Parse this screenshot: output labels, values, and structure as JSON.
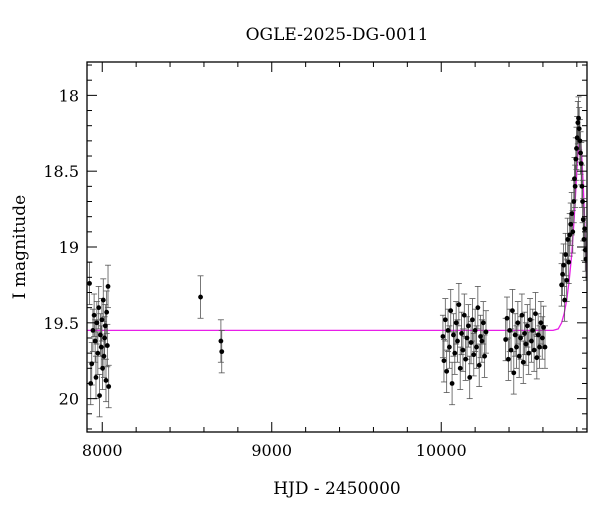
{
  "chart_data": {
    "type": "scatter",
    "title": "OGLE-2025-DG-0011",
    "xlabel": "HJD - 2450000",
    "ylabel": "I magnitude",
    "xlim": [
      7910,
      10860
    ],
    "ylim": [
      20.22,
      17.78
    ],
    "y_inverted": true,
    "x_ticks": [
      8000,
      9000,
      10000
    ],
    "y_ticks": [
      18,
      18.5,
      19,
      19.5,
      20
    ],
    "grid": false,
    "colors": {
      "points": "#000000",
      "model": "#e81ee8",
      "errorbars": "#555555"
    },
    "series": [
      {
        "kind": "points",
        "x": [
          7925,
          7932,
          7938,
          7945,
          7952,
          7958,
          7963,
          7968,
          7974,
          7979,
          7984,
          7989,
          7994,
          7998,
          8002,
          8006,
          8010,
          8014,
          8018,
          8022,
          8026,
          8030,
          8034,
          8038,
          8580,
          8700,
          8705,
          10010,
          10016,
          10024,
          10032,
          10040,
          10048,
          10056,
          10064,
          10072,
          10080,
          10088,
          10096,
          10104,
          10112,
          10120,
          10128,
          10136,
          10144,
          10152,
          10160,
          10168,
          10176,
          10184,
          10192,
          10200,
          10208,
          10216,
          10224,
          10232,
          10240,
          10248,
          10256,
          10264,
          10380,
          10388,
          10396,
          10404,
          10412,
          10420,
          10428,
          10436,
          10444,
          10452,
          10460,
          10468,
          10476,
          10484,
          10492,
          10500,
          10508,
          10516,
          10524,
          10532,
          10540,
          10548,
          10556,
          10564,
          10572,
          10580,
          10588,
          10596,
          10604,
          10612,
          10710,
          10716,
          10722,
          10728,
          10734,
          10740,
          10746,
          10752,
          10758,
          10764,
          10770,
          10776,
          10782,
          10786,
          10790,
          10794,
          10798,
          10802,
          10806,
          10810,
          10814,
          10818,
          10822,
          10826,
          10830,
          10834,
          10838,
          10842,
          10846,
          10850,
          10854
        ],
        "y": [
          19.24,
          19.9,
          19.77,
          19.55,
          19.45,
          19.62,
          19.86,
          19.5,
          19.7,
          19.4,
          19.98,
          19.58,
          19.66,
          19.48,
          19.8,
          19.35,
          19.72,
          19.6,
          19.52,
          19.88,
          19.43,
          19.65,
          19.26,
          19.92,
          19.33,
          19.62,
          19.69,
          19.59,
          19.75,
          19.48,
          19.82,
          19.55,
          19.66,
          19.42,
          19.9,
          19.58,
          19.7,
          19.5,
          19.62,
          19.38,
          19.8,
          19.57,
          19.68,
          19.45,
          19.74,
          19.6,
          19.52,
          19.86,
          19.63,
          19.48,
          19.71,
          19.55,
          19.66,
          19.4,
          19.78,
          19.59,
          19.62,
          19.5,
          19.72,
          19.56,
          19.61,
          19.47,
          19.74,
          19.55,
          19.68,
          19.42,
          19.83,
          19.58,
          19.66,
          19.5,
          19.72,
          19.6,
          19.45,
          19.76,
          19.57,
          19.64,
          19.52,
          19.7,
          19.48,
          19.62,
          19.55,
          19.68,
          19.44,
          19.73,
          19.58,
          19.66,
          19.5,
          19.6,
          19.53,
          19.66,
          19.25,
          19.18,
          19.12,
          19.35,
          19.05,
          19.22,
          18.95,
          19.1,
          18.92,
          18.85,
          18.78,
          18.9,
          18.7,
          18.55,
          18.6,
          18.42,
          18.35,
          18.28,
          18.18,
          18.15,
          18.22,
          18.3,
          18.38,
          18.45,
          18.6,
          18.7,
          18.82,
          18.95,
          18.88,
          19.02,
          19.08
        ],
        "err": 0.14
      },
      {
        "kind": "model",
        "name": "",
        "x": [
          7910,
          10660,
          10690,
          10710,
          10725,
          10740,
          10755,
          10770,
          10785,
          10795,
          10805,
          10815,
          10822,
          10830,
          10838,
          10846,
          10854,
          10860
        ],
        "y": [
          19.55,
          19.55,
          19.54,
          19.5,
          19.44,
          19.35,
          19.22,
          19.05,
          18.8,
          18.6,
          18.4,
          18.3,
          18.3,
          18.42,
          18.6,
          18.82,
          19.05,
          19.2
        ]
      }
    ]
  }
}
